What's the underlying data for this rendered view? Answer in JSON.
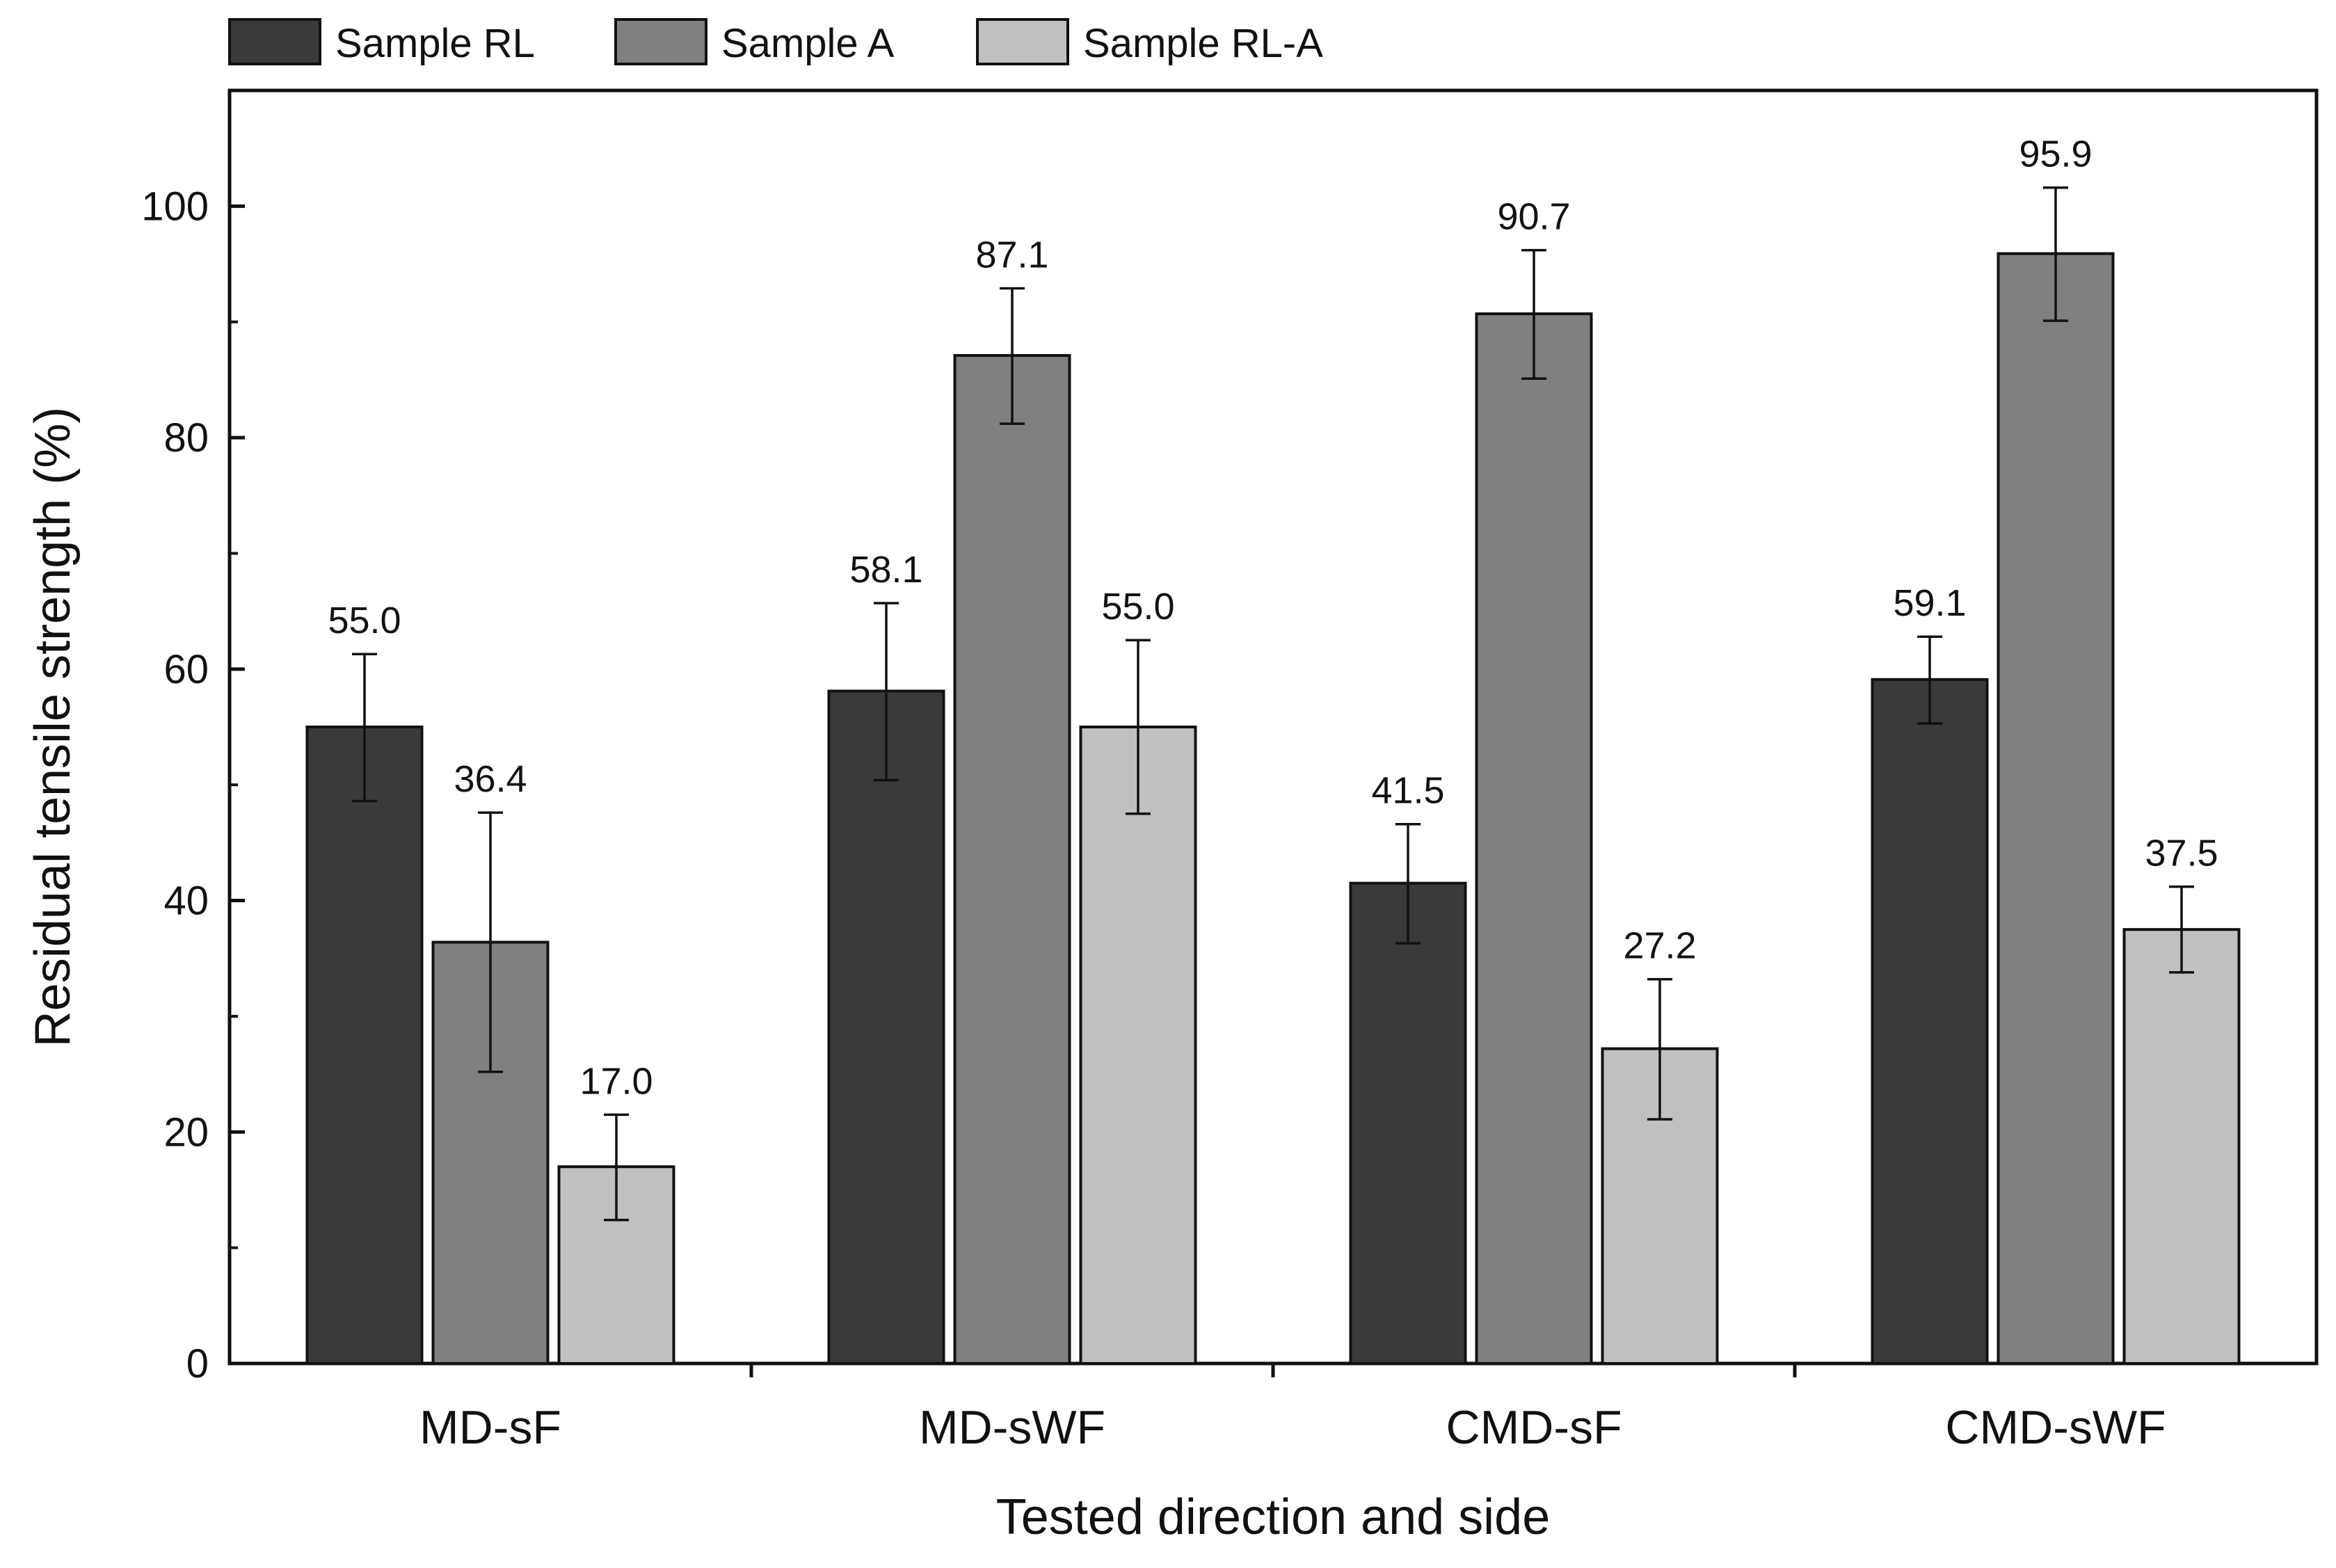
{
  "chart_data": {
    "type": "bar",
    "title": "",
    "xlabel": "Tested direction and side",
    "ylabel": "Residual tensile strength (%)",
    "ylim": [
      0,
      110
    ],
    "yticks": [
      0,
      20,
      40,
      60,
      80,
      100
    ],
    "yticklabels": [
      "0",
      "20",
      "40",
      "60",
      "80",
      "100"
    ],
    "categories": [
      "MD-sF",
      "MD-sWF",
      "CMD-sF",
      "CMD-sWF"
    ],
    "legend_position": "top-left, outside plot",
    "series": [
      {
        "name": "Sample RL",
        "color": "#3a3a3a",
        "values": [
          55.0,
          58.1,
          41.5,
          59.1
        ],
        "labels": [
          "55.0",
          "58.1",
          "41.5",
          "59.1"
        ],
        "error_low": [
          48.6,
          50.4,
          36.3,
          55.3
        ],
        "error_high": [
          61.3,
          65.7,
          46.6,
          62.8
        ]
      },
      {
        "name": "Sample A",
        "color": "#808080",
        "values": [
          36.4,
          87.1,
          90.7,
          95.9
        ],
        "labels": [
          "36.4",
          "87.1",
          "90.7",
          "95.9"
        ],
        "error_low": [
          25.2,
          81.2,
          85.1,
          90.1
        ],
        "error_high": [
          47.6,
          92.9,
          96.2,
          101.6
        ]
      },
      {
        "name": "Sample RL-A",
        "color": "#c0c0c0",
        "values": [
          17.0,
          55.0,
          27.2,
          37.5
        ],
        "labels": [
          "17.0",
          "55.0",
          "27.2",
          "37.5"
        ],
        "error_low": [
          12.4,
          47.5,
          21.1,
          33.8
        ],
        "error_high": [
          21.5,
          62.5,
          33.2,
          41.2
        ]
      }
    ]
  }
}
